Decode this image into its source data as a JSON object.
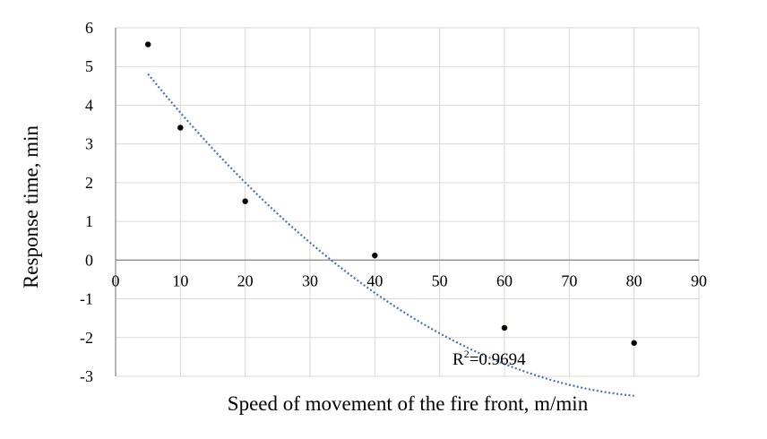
{
  "chart_data": {
    "type": "scatter",
    "xlabel": "Speed of movement of the fire front, m/min",
    "ylabel": "Response time, min",
    "xlim": [
      0,
      90
    ],
    "ylim": [
      -3,
      6
    ],
    "x_ticks": [
      "0",
      "10",
      "20",
      "30",
      "40",
      "50",
      "60",
      "70",
      "80",
      "90"
    ],
    "y_ticks": [
      "6",
      "5",
      "4",
      "3",
      "2",
      "1",
      "0",
      "-1",
      "-2",
      "-3"
    ],
    "grid": true,
    "series": [
      {
        "x": [
          5,
          10,
          20,
          40,
          60,
          80
        ],
        "y": [
          5.57,
          3.42,
          1.52,
          0.12,
          -1.75,
          -2.14
        ],
        "color": "#000000"
      }
    ],
    "trendline": {
      "type": "polynomial-2",
      "style": "dotted",
      "color": "#4472C4",
      "x_range": [
        5,
        80
      ],
      "coefficients": [
        0.001267,
        -0.2185,
        5.867
      ],
      "label_prefix": "R",
      "label_sup": "2",
      "label_value": "=0.9694"
    }
  }
}
